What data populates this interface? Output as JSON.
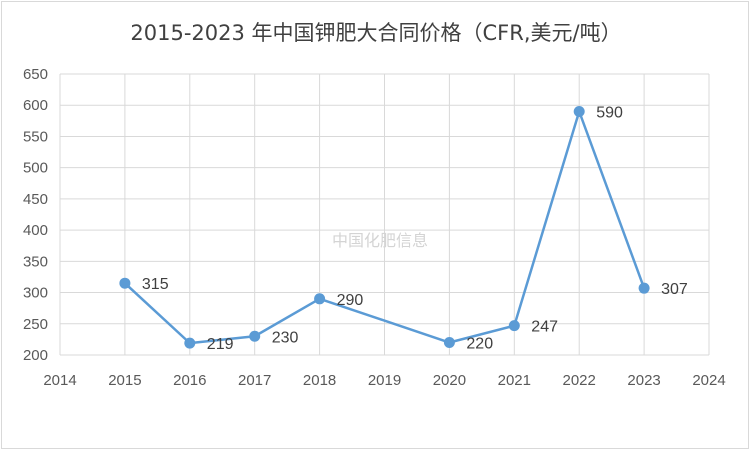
{
  "chart_data": {
    "type": "line",
    "title": "2015-2023 年中国钾肥大合同价格（CFR,美元/吨）",
    "watermark": "中国化肥信息",
    "xlim": [
      2014,
      2024
    ],
    "ylim": [
      200,
      650
    ],
    "x_ticks": [
      "2014",
      "2015",
      "2016",
      "2017",
      "2018",
      "2019",
      "2020",
      "2021",
      "2022",
      "2023",
      "2024"
    ],
    "y_ticks": [
      "200",
      "250",
      "300",
      "350",
      "400",
      "450",
      "500",
      "550",
      "600",
      "650"
    ],
    "grid": true,
    "line_color": "#5b9bd5",
    "series": [
      {
        "x": [
          2015,
          2016,
          2017,
          2018,
          2020,
          2021,
          2022,
          2023
        ],
        "values": [
          315,
          219,
          230,
          290,
          220,
          247,
          590,
          307
        ],
        "labels": [
          "315",
          "219",
          "230",
          "290",
          "220",
          "247",
          "590",
          "307"
        ]
      }
    ]
  }
}
